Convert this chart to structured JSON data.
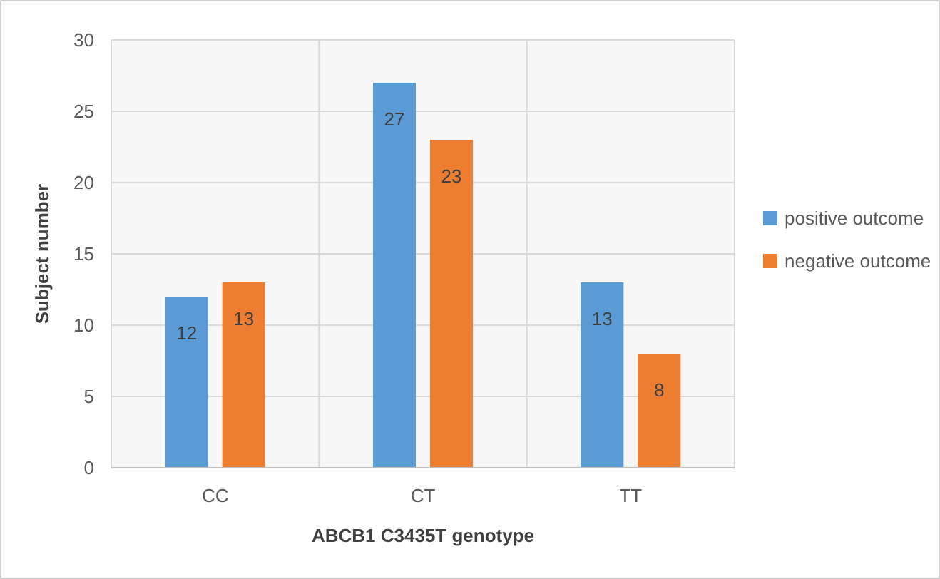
{
  "chart_data": {
    "type": "bar",
    "xlabel": "ABCB1 C3435T genotype",
    "ylabel": "Subject number",
    "categories": [
      "CC",
      "CT",
      "TT"
    ],
    "series": [
      {
        "name": "positive outcome",
        "color": "#5b9bd5",
        "values": [
          12,
          27,
          13
        ]
      },
      {
        "name": "negative outcome",
        "color": "#ed7d31",
        "values": [
          13,
          23,
          8
        ]
      }
    ],
    "ylim": [
      0,
      30
    ],
    "yticks": [
      0,
      5,
      10,
      15,
      20,
      25,
      30
    ],
    "grid": true,
    "legend": "right",
    "data_labels": true
  }
}
